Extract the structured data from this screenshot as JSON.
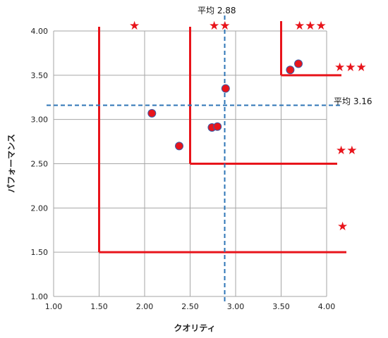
{
  "chart_data": {
    "type": "scatter",
    "xlabel": "クオリティ",
    "ylabel": "パフォーマンス",
    "xlim": [
      1.0,
      4.0
    ],
    "ylim": [
      1.0,
      4.0
    ],
    "x_ticks": [
      "1.00",
      "1.50",
      "2.00",
      "2.50",
      "3.00",
      "3.50",
      "4.00"
    ],
    "y_ticks": [
      "1.00",
      "1.50",
      "2.00",
      "2.50",
      "3.00",
      "3.50",
      "4.00"
    ],
    "grid": true,
    "marker_color": "#e8141b",
    "marker_edge_color": "#3b5aa6",
    "points": [
      {
        "x": 2.08,
        "y": 3.07
      },
      {
        "x": 2.38,
        "y": 2.7
      },
      {
        "x": 2.74,
        "y": 2.91
      },
      {
        "x": 2.8,
        "y": 2.92
      },
      {
        "x": 2.89,
        "y": 3.35
      },
      {
        "x": 3.6,
        "y": 3.56
      },
      {
        "x": 3.69,
        "y": 3.63
      }
    ],
    "mean_lines": {
      "x": {
        "value": 2.88,
        "label": "平均 2.88"
      },
      "y": {
        "value": 3.16,
        "label": "平均 3.16"
      },
      "color": "#2e75b6"
    },
    "threshold_color": "#e8141b",
    "thresholds": [
      {
        "x": 1.5,
        "y": 1.5
      },
      {
        "x": 2.5,
        "y": 2.5
      },
      {
        "x": 3.5,
        "y": 3.5
      }
    ],
    "rating_labels": [
      "★",
      "★★",
      "★★★",
      "★",
      "★★",
      "★★★"
    ]
  }
}
